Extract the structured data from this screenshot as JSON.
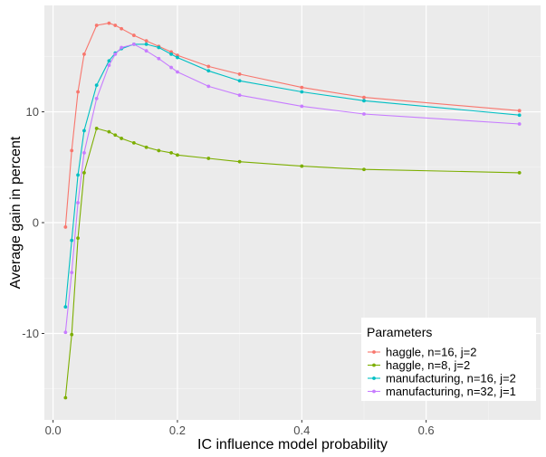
{
  "chart_data": {
    "type": "line",
    "title": "",
    "xlabel": "IC influence model probability",
    "ylabel": "Average gain in percent",
    "xlim": [
      -0.014,
      0.784
    ],
    "ylim": [
      -17.8,
      19.6
    ],
    "x_ticks": [
      0.0,
      0.2,
      0.4,
      0.6
    ],
    "x_tick_labels": [
      "0.0",
      "0.2",
      "0.4",
      "0.6"
    ],
    "y_ticks": [
      -10,
      0,
      10
    ],
    "y_tick_labels": [
      "-10",
      "0",
      "10"
    ],
    "grid": true,
    "legend_title": "Parameters",
    "legend_position": "bottom-right",
    "series": [
      {
        "name": "haggle, n=16, j=2",
        "color": "#f8766d",
        "x": [
          0.02,
          0.03,
          0.04,
          0.05,
          0.07,
          0.09,
          0.1,
          0.11,
          0.13,
          0.15,
          0.17,
          0.19,
          0.2,
          0.25,
          0.3,
          0.4,
          0.5,
          0.75
        ],
        "y": [
          -0.4,
          6.5,
          11.8,
          15.2,
          17.8,
          18.0,
          17.8,
          17.5,
          16.9,
          16.4,
          15.9,
          15.4,
          15.1,
          14.1,
          13.4,
          12.2,
          11.3,
          10.1
        ]
      },
      {
        "name": "haggle, n=8, j=2",
        "color": "#7cae00",
        "x": [
          0.02,
          0.03,
          0.04,
          0.05,
          0.07,
          0.09,
          0.1,
          0.11,
          0.13,
          0.15,
          0.17,
          0.19,
          0.2,
          0.25,
          0.3,
          0.4,
          0.5,
          0.75
        ],
        "y": [
          -15.8,
          -10.1,
          -1.4,
          4.5,
          8.5,
          8.2,
          7.9,
          7.6,
          7.2,
          6.8,
          6.5,
          6.3,
          6.1,
          5.8,
          5.5,
          5.1,
          4.8,
          4.5
        ]
      },
      {
        "name": "manufacturing, n=16, j=2",
        "color": "#00bfc4",
        "x": [
          0.02,
          0.03,
          0.04,
          0.05,
          0.07,
          0.09,
          0.1,
          0.11,
          0.13,
          0.15,
          0.17,
          0.19,
          0.2,
          0.25,
          0.3,
          0.4,
          0.5,
          0.75
        ],
        "y": [
          -7.6,
          -1.6,
          4.3,
          8.3,
          12.4,
          14.6,
          15.3,
          15.7,
          16.1,
          16.1,
          15.8,
          15.2,
          14.9,
          13.7,
          12.8,
          11.8,
          11.0,
          9.7
        ]
      },
      {
        "name": "manufacturing, n=32, j=1",
        "color": "#c77cff",
        "x": [
          0.02,
          0.03,
          0.04,
          0.05,
          0.07,
          0.09,
          0.1,
          0.11,
          0.13,
          0.15,
          0.17,
          0.19,
          0.2,
          0.25,
          0.3,
          0.4,
          0.5,
          0.75
        ],
        "y": [
          -9.9,
          -4.5,
          1.8,
          6.3,
          11.2,
          14.2,
          15.2,
          15.8,
          16.1,
          15.5,
          14.8,
          14.0,
          13.6,
          12.3,
          11.5,
          10.5,
          9.8,
          8.9
        ]
      }
    ]
  }
}
